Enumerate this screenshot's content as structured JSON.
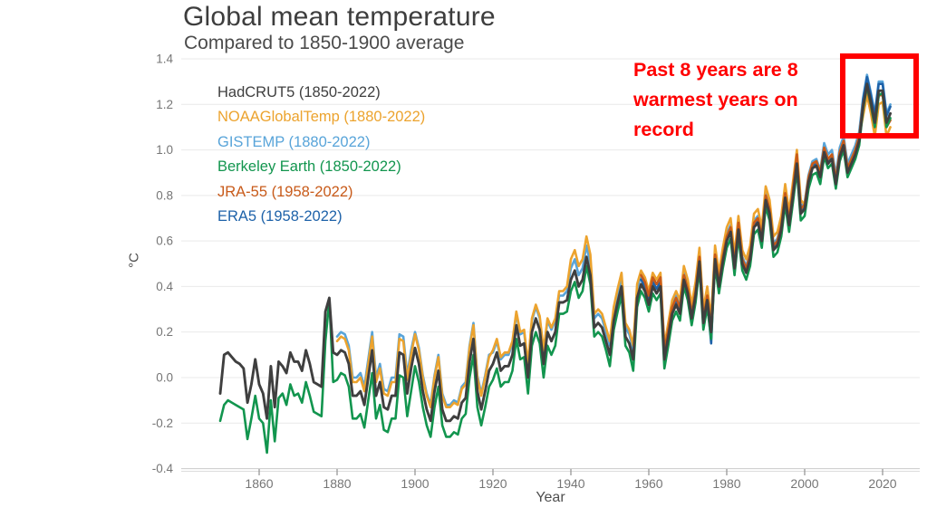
{
  "header": {
    "title": "Global mean temperature",
    "subtitle": "Compared to 1850-1900 average"
  },
  "annotation": {
    "lines": [
      "Past 8 years are 8",
      "warmest years on",
      "record"
    ],
    "color": "#ff0000"
  },
  "axes": {
    "y_unit": "°C",
    "x_title": "Year"
  },
  "chart_data": {
    "type": "line",
    "title": "Global mean temperature",
    "subtitle": "Compared to 1850-1900 average",
    "xlabel": "Year",
    "ylabel": "°C",
    "xlim": [
      1850,
      2022
    ],
    "ylim": [
      -0.4,
      1.4
    ],
    "grid": true,
    "legend_position": "top-left-inside",
    "x_ticks": [
      1860,
      1880,
      1900,
      1920,
      1940,
      1960,
      1980,
      2000,
      2020
    ],
    "y_ticks": [
      1.4,
      1.2,
      1.0,
      0.8,
      0.6,
      0.4,
      0.2,
      0.0,
      -0.2,
      -0.4
    ],
    "highlight": {
      "label": "Past 8 years are 8 warmest years on record",
      "years": [
        2015,
        2022
      ],
      "color": "#ff0000"
    },
    "series": [
      {
        "name": "HadCRUT5 (1850-2022)",
        "color": "#3f3f3f",
        "start_year": 1850,
        "end_year": 2022,
        "values": [
          -0.07,
          0.1,
          0.11,
          0.09,
          0.07,
          0.06,
          0.04,
          -0.11,
          -0.03,
          0.08,
          -0.03,
          -0.07,
          -0.18,
          0.05,
          -0.13,
          0.07,
          0.05,
          0.02,
          0.11,
          0.07,
          0.07,
          0.03,
          0.12,
          0.06,
          -0.02,
          -0.03,
          -0.04,
          0.29,
          0.35,
          0.11,
          0.1,
          0.12,
          0.11,
          0.06,
          -0.08,
          -0.08,
          -0.06,
          -0.12,
          0.0,
          0.12,
          -0.08,
          -0.02,
          -0.13,
          -0.14,
          -0.08,
          -0.08,
          0.11,
          0.1,
          -0.07,
          0.04,
          0.13,
          0.06,
          -0.06,
          -0.14,
          -0.19,
          -0.06,
          0.03,
          -0.14,
          -0.19,
          -0.19,
          -0.17,
          -0.18,
          -0.11,
          -0.09,
          0.07,
          0.17,
          -0.06,
          -0.14,
          -0.06,
          0.03,
          0.06,
          0.11,
          0.03,
          0.05,
          0.05,
          0.1,
          0.23,
          0.14,
          0.15,
          0.0,
          0.2,
          0.26,
          0.21,
          0.06,
          0.2,
          0.16,
          0.2,
          0.33,
          0.33,
          0.34,
          0.43,
          0.47,
          0.4,
          0.43,
          0.53,
          0.45,
          0.22,
          0.24,
          0.22,
          0.16,
          0.1,
          0.25,
          0.33,
          0.4,
          0.18,
          0.15,
          0.08,
          0.35,
          0.41,
          0.38,
          0.32,
          0.4,
          0.37,
          0.4,
          0.08,
          0.18,
          0.28,
          0.32,
          0.28,
          0.43,
          0.37,
          0.26,
          0.36,
          0.51,
          0.24,
          0.34,
          0.2,
          0.52,
          0.4,
          0.51,
          0.6,
          0.64,
          0.48,
          0.65,
          0.5,
          0.46,
          0.52,
          0.66,
          0.68,
          0.6,
          0.78,
          0.72,
          0.56,
          0.58,
          0.65,
          0.79,
          0.67,
          0.8,
          0.94,
          0.72,
          0.74,
          0.86,
          0.92,
          0.93,
          0.88,
          0.99,
          0.94,
          0.96,
          0.85,
          0.97,
          1.02,
          0.9,
          0.94,
          0.98,
          1.04,
          1.19,
          1.29,
          1.21,
          1.12,
          1.26,
          1.26,
          1.12,
          1.16
        ]
      },
      {
        "name": "NOAAGlobalTemp (1880-2022)",
        "color": "#eca32e",
        "start_year": 1880,
        "end_year": 2022,
        "values": [
          0.16,
          0.18,
          0.17,
          0.12,
          -0.02,
          -0.02,
          0.0,
          -0.06,
          0.06,
          0.18,
          -0.02,
          0.04,
          -0.07,
          -0.08,
          -0.02,
          -0.02,
          0.17,
          0.16,
          -0.01,
          0.1,
          0.19,
          0.12,
          0.0,
          -0.08,
          -0.13,
          0.0,
          0.09,
          -0.08,
          -0.13,
          -0.13,
          -0.11,
          -0.12,
          -0.05,
          -0.03,
          0.13,
          0.23,
          0.0,
          -0.08,
          0.0,
          0.09,
          0.12,
          0.17,
          0.09,
          0.11,
          0.11,
          0.16,
          0.29,
          0.2,
          0.21,
          0.06,
          0.26,
          0.32,
          0.27,
          0.12,
          0.26,
          0.22,
          0.26,
          0.38,
          0.38,
          0.4,
          0.52,
          0.56,
          0.49,
          0.52,
          0.62,
          0.54,
          0.28,
          0.3,
          0.28,
          0.22,
          0.16,
          0.31,
          0.39,
          0.46,
          0.24,
          0.21,
          0.14,
          0.41,
          0.47,
          0.44,
          0.38,
          0.46,
          0.43,
          0.46,
          0.14,
          0.24,
          0.34,
          0.38,
          0.34,
          0.49,
          0.43,
          0.32,
          0.42,
          0.57,
          0.3,
          0.4,
          0.26,
          0.58,
          0.46,
          0.57,
          0.66,
          0.7,
          0.54,
          0.71,
          0.56,
          0.52,
          0.58,
          0.72,
          0.74,
          0.66,
          0.84,
          0.78,
          0.62,
          0.64,
          0.71,
          0.85,
          0.73,
          0.86,
          1.0,
          0.78,
          0.76,
          0.88,
          0.94,
          0.95,
          0.9,
          1.01,
          0.96,
          0.98,
          0.87,
          0.99,
          1.04,
          0.92,
          0.96,
          1.0,
          1.06,
          1.15,
          1.24,
          1.16,
          1.06,
          1.2,
          1.21,
          1.06,
          1.1
        ]
      },
      {
        "name": "GISTEMP (1880-2022)",
        "color": "#58a4d9",
        "start_year": 1880,
        "end_year": 2022,
        "values": [
          0.18,
          0.2,
          0.19,
          0.14,
          0.0,
          0.0,
          0.02,
          -0.04,
          0.08,
          0.2,
          0.0,
          0.06,
          -0.05,
          -0.06,
          0.0,
          0.0,
          0.19,
          0.18,
          0.01,
          0.12,
          0.2,
          0.13,
          0.01,
          -0.07,
          -0.12,
          0.01,
          0.1,
          -0.07,
          -0.12,
          -0.12,
          -0.1,
          -0.11,
          -0.04,
          -0.02,
          0.14,
          0.24,
          0.01,
          -0.07,
          0.01,
          0.1,
          0.11,
          0.16,
          0.08,
          0.1,
          0.1,
          0.15,
          0.28,
          0.19,
          0.2,
          0.05,
          0.25,
          0.31,
          0.26,
          0.11,
          0.25,
          0.21,
          0.25,
          0.36,
          0.36,
          0.38,
          0.48,
          0.52,
          0.45,
          0.48,
          0.58,
          0.5,
          0.26,
          0.28,
          0.26,
          0.2,
          0.14,
          0.29,
          0.37,
          0.44,
          0.22,
          0.19,
          0.12,
          0.39,
          0.45,
          0.42,
          0.36,
          0.44,
          0.41,
          0.44,
          0.12,
          0.22,
          0.32,
          0.36,
          0.32,
          0.47,
          0.41,
          0.3,
          0.4,
          0.55,
          0.28,
          0.38,
          0.24,
          0.55,
          0.43,
          0.54,
          0.63,
          0.67,
          0.51,
          0.68,
          0.53,
          0.49,
          0.55,
          0.69,
          0.71,
          0.63,
          0.81,
          0.75,
          0.59,
          0.61,
          0.68,
          0.82,
          0.7,
          0.83,
          0.97,
          0.75,
          0.77,
          0.89,
          0.95,
          0.96,
          0.91,
          1.03,
          0.98,
          1.0,
          0.89,
          1.01,
          1.06,
          0.94,
          0.98,
          1.02,
          1.08,
          1.23,
          1.33,
          1.25,
          1.16,
          1.3,
          1.3,
          1.16,
          1.2
        ]
      },
      {
        "name": "Berkeley Earth (1850-2022)",
        "color": "#12954e",
        "start_year": 1850,
        "end_year": 2022,
        "values": [
          -0.19,
          -0.12,
          -0.1,
          -0.11,
          -0.12,
          -0.13,
          -0.14,
          -0.27,
          -0.18,
          -0.08,
          -0.18,
          -0.2,
          -0.33,
          -0.1,
          -0.28,
          -0.09,
          -0.07,
          -0.12,
          -0.03,
          -0.08,
          -0.07,
          -0.11,
          -0.02,
          -0.08,
          -0.15,
          -0.16,
          -0.17,
          0.16,
          0.34,
          -0.02,
          -0.01,
          0.02,
          0.01,
          -0.04,
          -0.18,
          -0.18,
          -0.16,
          -0.22,
          -0.1,
          0.02,
          -0.18,
          -0.12,
          -0.23,
          -0.24,
          -0.18,
          -0.18,
          0.01,
          0.0,
          -0.17,
          -0.06,
          0.05,
          -0.02,
          -0.13,
          -0.21,
          -0.26,
          -0.13,
          -0.04,
          -0.21,
          -0.26,
          -0.26,
          -0.24,
          -0.25,
          -0.18,
          -0.16,
          0.0,
          0.1,
          -0.13,
          -0.21,
          -0.13,
          -0.04,
          -0.01,
          0.04,
          -0.04,
          -0.02,
          -0.02,
          0.03,
          0.17,
          0.08,
          0.09,
          -0.07,
          0.14,
          0.2,
          0.15,
          0.0,
          0.14,
          0.1,
          0.14,
          0.28,
          0.28,
          0.29,
          0.38,
          0.42,
          0.35,
          0.38,
          0.49,
          0.41,
          0.18,
          0.2,
          0.18,
          0.12,
          0.05,
          0.21,
          0.29,
          0.36,
          0.14,
          0.11,
          0.03,
          0.31,
          0.38,
          0.35,
          0.29,
          0.37,
          0.34,
          0.37,
          0.04,
          0.14,
          0.25,
          0.29,
          0.25,
          0.4,
          0.34,
          0.23,
          0.33,
          0.48,
          0.21,
          0.31,
          0.17,
          0.49,
          0.37,
          0.48,
          0.57,
          0.61,
          0.45,
          0.62,
          0.47,
          0.43,
          0.49,
          0.63,
          0.65,
          0.57,
          0.75,
          0.69,
          0.53,
          0.55,
          0.62,
          0.76,
          0.64,
          0.77,
          0.91,
          0.69,
          0.71,
          0.83,
          0.89,
          0.9,
          0.85,
          0.97,
          0.92,
          0.94,
          0.83,
          0.95,
          1.0,
          0.88,
          0.92,
          0.96,
          1.02,
          1.18,
          1.28,
          1.2,
          1.1,
          1.24,
          1.25,
          1.1,
          1.14
        ]
      },
      {
        "name": "JRA-55 (1958-2022)",
        "color": "#c85a19",
        "start_year": 1958,
        "end_year": 2022,
        "values": [
          0.45,
          0.42,
          0.36,
          0.44,
          0.41,
          0.44,
          0.12,
          0.21,
          0.31,
          0.35,
          0.31,
          0.45,
          0.39,
          0.28,
          0.38,
          0.53,
          0.26,
          0.36,
          0.22,
          0.54,
          0.42,
          0.53,
          0.62,
          0.66,
          0.5,
          0.68,
          0.52,
          0.48,
          0.54,
          0.68,
          0.7,
          0.62,
          0.8,
          0.74,
          0.58,
          0.6,
          0.67,
          0.81,
          0.69,
          0.83,
          0.98,
          0.74,
          0.76,
          0.88,
          0.94,
          0.95,
          0.9,
          1.01,
          0.96,
          0.98,
          0.87,
          0.99,
          1.04,
          0.92,
          0.96,
          1.0,
          1.06,
          1.2,
          1.27,
          1.19,
          1.1,
          1.24,
          1.24,
          1.1,
          1.13
        ]
      },
      {
        "name": "ERA5 (1958-2022)",
        "color": "#1e62a9",
        "start_year": 1958,
        "end_year": 2022,
        "values": [
          0.43,
          0.4,
          0.34,
          0.42,
          0.39,
          0.42,
          0.07,
          0.17,
          0.3,
          0.34,
          0.3,
          0.45,
          0.39,
          0.27,
          0.38,
          0.53,
          0.25,
          0.35,
          0.15,
          0.53,
          0.41,
          0.52,
          0.61,
          0.65,
          0.49,
          0.66,
          0.51,
          0.47,
          0.53,
          0.67,
          0.69,
          0.61,
          0.79,
          0.73,
          0.57,
          0.59,
          0.66,
          0.8,
          0.68,
          0.81,
          0.95,
          0.73,
          0.75,
          0.87,
          0.93,
          0.94,
          0.89,
          1.0,
          0.95,
          0.97,
          0.86,
          0.98,
          1.03,
          0.91,
          0.95,
          0.99,
          1.05,
          1.22,
          1.32,
          1.24,
          1.15,
          1.29,
          1.29,
          1.15,
          1.19
        ]
      }
    ]
  }
}
